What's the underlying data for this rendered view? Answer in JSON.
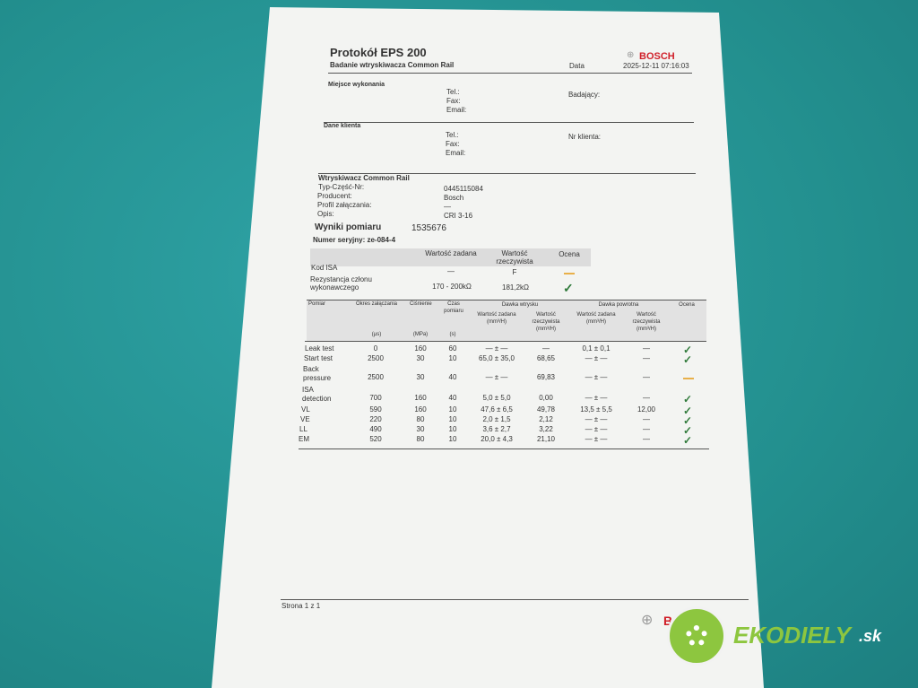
{
  "header": {
    "title": "Protokół EPS 200",
    "subtitle": "Badanie wtryskiwacza Common Rail",
    "brand": "BOSCH",
    "date_label": "Data",
    "date_value": "2025-12-11 07:16:03"
  },
  "place": {
    "label": "Miejsce wykonania",
    "tel": "Tel.:",
    "fax": "Fax:",
    "email": "Email:",
    "tester": "Badający:"
  },
  "client": {
    "label": "Dane klienta",
    "tel": "Tel.:",
    "fax": "Fax:",
    "email": "Email:",
    "number": "Nr klienta:"
  },
  "injector": {
    "label": "Wtryskiwacz Common Rail",
    "fields": [
      {
        "k": "Typ-Część-Nr:",
        "v": "0445115084"
      },
      {
        "k": "Producent:",
        "v": "Bosch"
      },
      {
        "k": "Profil załączania:",
        "v": "—"
      },
      {
        "k": "Opis:",
        "v": "CRI 3-16"
      }
    ]
  },
  "results": {
    "label": "Wyniki pomiaru",
    "id": "1535676",
    "serial": "Numer seryjny: ze-084-4"
  },
  "isa_table": {
    "headers": [
      "Wartość zadana",
      "Wartość rzeczywista",
      "Ocena"
    ],
    "rows": [
      {
        "name": "Kod ISA",
        "set": "—",
        "actual": "F",
        "rating": "warn"
      },
      {
        "name": "Rezystancja członu wykonawczego",
        "set": "170 - 200kΩ",
        "actual": "181,2kΩ",
        "rating": "ok"
      }
    ]
  },
  "meas_table": {
    "headers": {
      "pomiar": "Pomiar",
      "okres": "Okres załączania",
      "cisnienie": "Ciśnienie",
      "czas": "Czas pomiaru",
      "dawka_wtrysku": "Dawka wtrysku",
      "dawka_powrotna": "Dawka powrotna",
      "ocena": "Ocena",
      "set": "Wartość zadana (mm³/H)",
      "actual": "Wartość rzeczywista (mm³/H)",
      "u_okres": "(µs)",
      "u_cis": "(MPa)",
      "u_czas": "(s)"
    },
    "rows": [
      {
        "name": "Leak test",
        "okres": "0",
        "cis": "160",
        "czas": "60",
        "inj_set": "— ± —",
        "inj_act": "—",
        "ret_set": "0,1 ± 0,1",
        "ret_act": "—",
        "rating": "ok"
      },
      {
        "name": "Start test",
        "okres": "2500",
        "cis": "30",
        "czas": "10",
        "inj_set": "65,0 ± 35,0",
        "inj_act": "68,65",
        "ret_set": "— ± —",
        "ret_act": "—",
        "rating": "ok"
      },
      {
        "name": "Back pressure",
        "okres": "2500",
        "cis": "30",
        "czas": "40",
        "inj_set": "— ± —",
        "inj_act": "69,83",
        "ret_set": "— ± —",
        "ret_act": "—",
        "rating": "warn"
      },
      {
        "name": "ISA detection",
        "okres": "700",
        "cis": "160",
        "czas": "40",
        "inj_set": "5,0 ± 5,0",
        "inj_act": "0,00",
        "ret_set": "— ± —",
        "ret_act": "—",
        "rating": "ok"
      },
      {
        "name": "VL",
        "okres": "590",
        "cis": "160",
        "czas": "10",
        "inj_set": "47,6 ± 6,5",
        "inj_act": "49,78",
        "ret_set": "13,5 ± 5,5",
        "ret_act": "12,00",
        "rating": "ok"
      },
      {
        "name": "VE",
        "okres": "220",
        "cis": "80",
        "czas": "10",
        "inj_set": "2,0 ± 1,5",
        "inj_act": "2,12",
        "ret_set": "— ± —",
        "ret_act": "—",
        "rating": "ok"
      },
      {
        "name": "LL",
        "okres": "490",
        "cis": "30",
        "czas": "10",
        "inj_set": "3,6 ± 2,7",
        "inj_act": "3,22",
        "ret_set": "— ± —",
        "ret_act": "—",
        "rating": "ok"
      },
      {
        "name": "EM",
        "okres": "520",
        "cis": "80",
        "czas": "10",
        "inj_set": "20,0 ± 4,3",
        "inj_act": "21,10",
        "ret_set": "— ± —",
        "ret_act": "—",
        "rating": "ok"
      }
    ]
  },
  "footer": {
    "page": "Strona 1 z 1",
    "brand": "BOSCH"
  },
  "watermark": {
    "text": "EKODIELY",
    "suffix": ".sk"
  },
  "colors": {
    "ok": "#2f7a3a",
    "warn": "#e8b04a",
    "brand": "#d0202a",
    "background": "#23908f"
  }
}
